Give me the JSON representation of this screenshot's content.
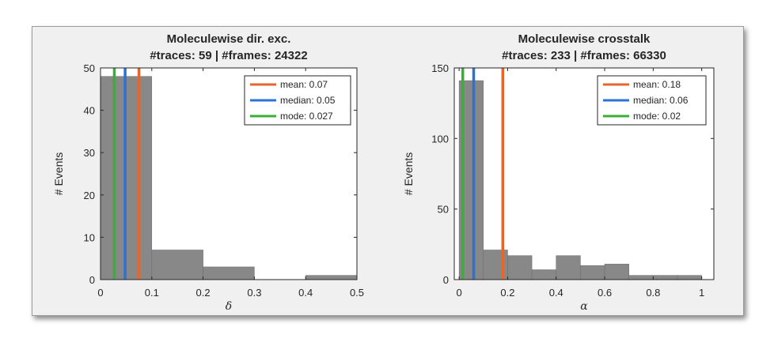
{
  "chart_data": [
    {
      "type": "bar",
      "title_lines": [
        "Moleculewise dir. exc.",
        "#traces: 59 | #frames: 24322"
      ],
      "xlabel": "δ",
      "ylabel": "# Events",
      "xlim": [
        0,
        0.5
      ],
      "ylim": [
        0,
        50
      ],
      "xticks": [
        "0",
        "0.1",
        "0.2",
        "0.3",
        "0.4",
        "0.5"
      ],
      "xtick_values": [
        0,
        0.1,
        0.2,
        0.3,
        0.4,
        0.5
      ],
      "yticks": [
        "0",
        "10",
        "20",
        "30",
        "40",
        "50"
      ],
      "ytick_values": [
        0,
        10,
        20,
        30,
        40,
        50
      ],
      "bins": [
        {
          "x0": 0.0,
          "x1": 0.1,
          "value": 48
        },
        {
          "x0": 0.1,
          "x1": 0.2,
          "value": 7
        },
        {
          "x0": 0.2,
          "x1": 0.3,
          "value": 3
        },
        {
          "x0": 0.3,
          "x1": 0.4,
          "value": 0
        },
        {
          "x0": 0.4,
          "x1": 0.5,
          "value": 1
        }
      ],
      "bar_color": "#888888",
      "vlines": [
        {
          "label": "mean: 0.07",
          "x": 0.075,
          "color": "#e3662d"
        },
        {
          "label": "median: 0.05",
          "x": 0.048,
          "color": "#2a73d6"
        },
        {
          "label": "mode: 0.027",
          "x": 0.027,
          "color": "#3aae35"
        }
      ],
      "legend_position": "top-right",
      "grid": false
    },
    {
      "type": "bar",
      "title_lines": [
        "Moleculewise crosstalk",
        "#traces: 233 | #frames: 66330"
      ],
      "xlabel": "α",
      "ylabel": "# Events",
      "xlim": [
        -0.02,
        1.05
      ],
      "ylim": [
        0,
        150
      ],
      "xticks": [
        "0",
        "0.2",
        "0.4",
        "0.6",
        "0.8",
        "1"
      ],
      "xtick_values": [
        0,
        0.2,
        0.4,
        0.6,
        0.8,
        1.0
      ],
      "yticks": [
        "0",
        "50",
        "100",
        "150"
      ],
      "ytick_values": [
        0,
        50,
        100,
        150
      ],
      "bins": [
        {
          "x0": 0.0,
          "x1": 0.1,
          "value": 141
        },
        {
          "x0": 0.1,
          "x1": 0.2,
          "value": 21
        },
        {
          "x0": 0.2,
          "x1": 0.3,
          "value": 17
        },
        {
          "x0": 0.3,
          "x1": 0.4,
          "value": 7
        },
        {
          "x0": 0.4,
          "x1": 0.5,
          "value": 17
        },
        {
          "x0": 0.5,
          "x1": 0.6,
          "value": 10
        },
        {
          "x0": 0.6,
          "x1": 0.7,
          "value": 11
        },
        {
          "x0": 0.7,
          "x1": 0.8,
          "value": 3
        },
        {
          "x0": 0.8,
          "x1": 0.9,
          "value": 3
        },
        {
          "x0": 0.9,
          "x1": 1.0,
          "value": 3
        }
      ],
      "bar_color": "#888888",
      "vlines": [
        {
          "label": "mean: 0.18",
          "x": 0.18,
          "color": "#e3662d"
        },
        {
          "label": "median: 0.06",
          "x": 0.06,
          "color": "#2a73d6"
        },
        {
          "label": "mode: 0.02",
          "x": 0.015,
          "color": "#3aae35"
        }
      ],
      "legend_position": "top-right",
      "grid": false
    }
  ]
}
